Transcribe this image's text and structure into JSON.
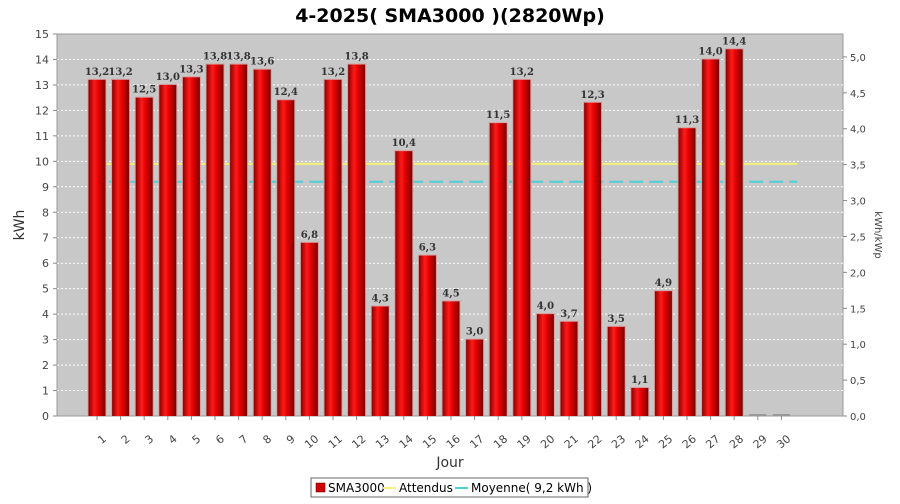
{
  "chart_data": {
    "type": "bar",
    "title": "4-2025( SMA3000 )(2820Wp)",
    "xlabel": "Jour",
    "ylabel": "kWh",
    "ylabel_right": "kWh/kWp",
    "categories": [
      "1",
      "2",
      "3",
      "4",
      "5",
      "6",
      "7",
      "8",
      "9",
      "10",
      "11",
      "12",
      "13",
      "14",
      "15",
      "16",
      "17",
      "18",
      "19",
      "20",
      "21",
      "22",
      "23",
      "24",
      "25",
      "26",
      "27",
      "28",
      "29",
      "30"
    ],
    "series": [
      {
        "name": "SMA3000",
        "values": [
          13.2,
          13.2,
          12.5,
          13.0,
          13.3,
          13.8,
          13.8,
          13.6,
          12.4,
          6.8,
          13.2,
          13.8,
          4.3,
          10.4,
          6.3,
          4.5,
          3.0,
          11.5,
          13.2,
          4.0,
          3.7,
          12.3,
          3.5,
          1.1,
          4.9,
          11.3,
          14.0,
          14.4,
          0,
          0
        ],
        "labels": [
          "13,2",
          "13,2",
          "12,5",
          "13,0",
          "13,3",
          "13,8",
          "13,8",
          "13,6",
          "12,4",
          "6,8",
          "13,2",
          "13,8",
          "4,3",
          "10,4",
          "6,3",
          "4,5",
          "3,0",
          "11,5",
          "13,2",
          "4,0",
          "3,7",
          "12,3",
          "3,5",
          "1,1",
          "4,9",
          "11,3",
          "14,0",
          "14,4",
          "",
          ""
        ],
        "color": "#e00000"
      }
    ],
    "reference_lines": [
      {
        "name": "Attendus",
        "value": 9.9,
        "color": "#f5f07a",
        "style": "solid"
      },
      {
        "name": "Moyenne( 9,2 kWh )",
        "value": 9.2,
        "color": "#4ccfd6",
        "style": "dashed"
      }
    ],
    "ylim": [
      0,
      15
    ],
    "y_ticks": [
      "0",
      "1",
      "2",
      "3",
      "4",
      "5",
      "6",
      "7",
      "8",
      "9",
      "10",
      "11",
      "12",
      "13",
      "14",
      "15"
    ],
    "y_right_lim": [
      0,
      5.3191
    ],
    "y_right_ticks": [
      "0,0",
      "0,5",
      "1,0",
      "1,5",
      "2,0",
      "2,5",
      "3,0",
      "3,5",
      "4,0",
      "4,5",
      "5,0"
    ],
    "grid": true,
    "legend_position": "bottom",
    "colors": {
      "plot_bg": "#c8c8c8",
      "grid": "#ffffff"
    }
  }
}
